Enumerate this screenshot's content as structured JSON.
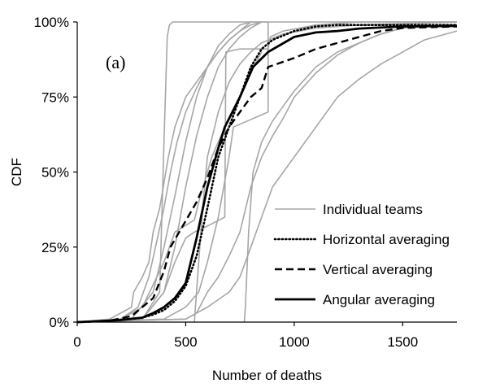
{
  "chart_data": {
    "type": "line",
    "title": "",
    "panel_label": "(a)",
    "xlabel": "Number of deaths",
    "ylabel": "CDF",
    "xlim": [
      0,
      1750
    ],
    "ylim": [
      0,
      100
    ],
    "x_ticks": [
      0,
      500,
      1000,
      1500
    ],
    "y_ticks": [
      0,
      25,
      50,
      75,
      100
    ],
    "x_tick_labels": [
      "0",
      "500",
      "1000",
      "1500"
    ],
    "y_tick_labels": [
      "0%",
      "25%",
      "50%",
      "75%",
      "100%"
    ],
    "grid": false,
    "legend_position": "bottom-right",
    "legend": [
      {
        "label": "Individual teams",
        "style": "solid",
        "color": "#a6a6a6"
      },
      {
        "label": "Horizontal averaging",
        "style": "dotted",
        "color": "#000000"
      },
      {
        "label": "Vertical averaging",
        "style": "dashed",
        "color": "#000000"
      },
      {
        "label": "Angular averaging",
        "style": "solid",
        "color": "#000000"
      }
    ],
    "series": [
      {
        "name": "Individual teams",
        "style": "solid",
        "color": "#a6a6a6",
        "width": 1.6,
        "points": [
          [
            0,
            0
          ],
          [
            300,
            1
          ],
          [
            380,
            10
          ],
          [
            400,
            60
          ],
          [
            415,
            95
          ],
          [
            425,
            99
          ],
          [
            440,
            100
          ],
          [
            880,
            100
          ]
        ]
      },
      {
        "name": "Individual teams",
        "style": "solid",
        "color": "#a6a6a6",
        "width": 1.6,
        "points": [
          [
            0,
            0
          ],
          [
            150,
            1
          ],
          [
            250,
            5
          ],
          [
            260,
            10
          ],
          [
            300,
            15
          ],
          [
            330,
            20
          ],
          [
            350,
            30
          ],
          [
            380,
            38
          ],
          [
            420,
            55
          ],
          [
            450,
            65
          ],
          [
            500,
            75
          ],
          [
            550,
            80
          ],
          [
            600,
            85
          ],
          [
            650,
            90
          ],
          [
            700,
            94
          ],
          [
            750,
            97
          ],
          [
            800,
            100
          ],
          [
            880,
            100
          ]
        ]
      },
      {
        "name": "Individual teams",
        "style": "solid",
        "color": "#a6a6a6",
        "width": 1.6,
        "points": [
          [
            0,
            0
          ],
          [
            200,
            1
          ],
          [
            280,
            5
          ],
          [
            330,
            15
          ],
          [
            370,
            28
          ],
          [
            400,
            38
          ],
          [
            430,
            50
          ],
          [
            460,
            60
          ],
          [
            500,
            70
          ],
          [
            550,
            78
          ],
          [
            600,
            85
          ],
          [
            650,
            90
          ],
          [
            700,
            94
          ],
          [
            750,
            97
          ],
          [
            800,
            99
          ],
          [
            850,
            100
          ]
        ]
      },
      {
        "name": "Individual teams",
        "style": "solid",
        "color": "#a6a6a6",
        "width": 1.6,
        "points": [
          [
            0,
            0
          ],
          [
            250,
            1
          ],
          [
            350,
            10
          ],
          [
            400,
            25
          ],
          [
            450,
            42
          ],
          [
            500,
            60
          ],
          [
            550,
            75
          ],
          [
            600,
            85
          ],
          [
            650,
            92
          ],
          [
            700,
            96
          ],
          [
            750,
            99
          ],
          [
            800,
            100
          ]
        ]
      },
      {
        "name": "Individual teams",
        "style": "solid",
        "color": "#a6a6a6",
        "width": 1.6,
        "points": [
          [
            0,
            0
          ],
          [
            300,
            1
          ],
          [
            400,
            10
          ],
          [
            450,
            25
          ],
          [
            500,
            45
          ],
          [
            550,
            62
          ],
          [
            600,
            75
          ],
          [
            650,
            85
          ],
          [
            700,
            91
          ],
          [
            750,
            95
          ],
          [
            800,
            98
          ],
          [
            850,
            100
          ]
        ]
      },
      {
        "name": "Individual teams",
        "style": "solid",
        "color": "#a6a6a6",
        "width": 1.6,
        "points": [
          [
            0,
            0
          ],
          [
            200,
            1
          ],
          [
            300,
            5
          ],
          [
            400,
            20
          ],
          [
            450,
            30
          ],
          [
            540,
            34
          ],
          [
            560,
            40
          ],
          [
            620,
            55
          ],
          [
            680,
            65
          ],
          [
            730,
            72
          ],
          [
            780,
            80
          ],
          [
            820,
            86
          ],
          [
            850,
            90
          ]
        ]
      },
      {
        "name": "Individual teams",
        "style": "solid",
        "color": "#a6a6a6",
        "width": 1.6,
        "points": [
          [
            0,
            0
          ],
          [
            300,
            1
          ],
          [
            400,
            10
          ],
          [
            450,
            20
          ],
          [
            500,
            28
          ],
          [
            540,
            30
          ],
          [
            600,
            32
          ],
          [
            680,
            35
          ],
          [
            685,
            90
          ],
          [
            750,
            91
          ],
          [
            880,
            91
          ],
          [
            890,
            95
          ],
          [
            950,
            97
          ],
          [
            1100,
            99
          ],
          [
            1300,
            100
          ],
          [
            1750,
            100
          ]
        ]
      },
      {
        "name": "Individual teams",
        "style": "solid",
        "color": "#a6a6a6",
        "width": 1.6,
        "points": [
          [
            540,
            0
          ],
          [
            545,
            5
          ],
          [
            560,
            20
          ],
          [
            580,
            40
          ],
          [
            600,
            55
          ],
          [
            650,
            70
          ],
          [
            700,
            80
          ],
          [
            750,
            86
          ],
          [
            800,
            90
          ],
          [
            850,
            93
          ],
          [
            950,
            96
          ],
          [
            1100,
            98
          ],
          [
            1300,
            99
          ],
          [
            1750,
            100
          ]
        ]
      },
      {
        "name": "Individual teams",
        "style": "solid",
        "color": "#a6a6a6",
        "width": 1.6,
        "points": [
          [
            0,
            0
          ],
          [
            400,
            1
          ],
          [
            500,
            5
          ],
          [
            560,
            10
          ],
          [
            600,
            20
          ],
          [
            650,
            35
          ],
          [
            700,
            55
          ],
          [
            720,
            65
          ],
          [
            880,
            70
          ],
          [
            880,
            100
          ],
          [
            1750,
            100
          ]
        ]
      },
      {
        "name": "Individual teams",
        "style": "solid",
        "color": "#a6a6a6",
        "width": 1.6,
        "points": [
          [
            0,
            0
          ],
          [
            500,
            1
          ],
          [
            550,
            3
          ],
          [
            600,
            10
          ],
          [
            650,
            15
          ],
          [
            700,
            22
          ],
          [
            750,
            30
          ],
          [
            800,
            45
          ],
          [
            850,
            55
          ],
          [
            900,
            62
          ],
          [
            950,
            68
          ],
          [
            1000,
            75
          ],
          [
            1100,
            83
          ],
          [
            1200,
            89
          ],
          [
            1300,
            93
          ],
          [
            1400,
            96
          ],
          [
            1500,
            98
          ],
          [
            1750,
            99
          ]
        ]
      },
      {
        "name": "Individual teams",
        "style": "solid",
        "color": "#a6a6a6",
        "width": 1.6,
        "points": [
          [
            770,
            0
          ],
          [
            775,
            5
          ],
          [
            790,
            30
          ],
          [
            810,
            50
          ],
          [
            850,
            60
          ],
          [
            900,
            67
          ],
          [
            950,
            72
          ],
          [
            1000,
            77
          ],
          [
            1100,
            85
          ],
          [
            1200,
            90
          ],
          [
            1300,
            93
          ],
          [
            1400,
            96
          ],
          [
            1500,
            98
          ],
          [
            1750,
            99
          ]
        ]
      },
      {
        "name": "Individual teams",
        "style": "solid",
        "color": "#a6a6a6",
        "width": 1.6,
        "points": [
          [
            0,
            0
          ],
          [
            500,
            1
          ],
          [
            600,
            5
          ],
          [
            700,
            10
          ],
          [
            750,
            15
          ],
          [
            800,
            25
          ],
          [
            850,
            35
          ],
          [
            900,
            45
          ],
          [
            950,
            50
          ],
          [
            1000,
            55
          ],
          [
            1050,
            60
          ],
          [
            1100,
            65
          ],
          [
            1150,
            70
          ],
          [
            1200,
            75
          ],
          [
            1300,
            81
          ],
          [
            1400,
            86
          ],
          [
            1500,
            90
          ],
          [
            1600,
            94
          ],
          [
            1750,
            97
          ]
        ]
      },
      {
        "name": "Horizontal averaging",
        "style": "dotted",
        "color": "#000000",
        "width": 2.6,
        "points": [
          [
            0,
            0
          ],
          [
            100,
            0.3
          ],
          [
            200,
            0.7
          ],
          [
            300,
            1.5
          ],
          [
            350,
            2.5
          ],
          [
            400,
            4
          ],
          [
            450,
            7
          ],
          [
            500,
            12
          ],
          [
            550,
            22
          ],
          [
            600,
            38
          ],
          [
            650,
            55
          ],
          [
            700,
            65
          ],
          [
            750,
            75
          ],
          [
            800,
            85
          ],
          [
            850,
            91
          ],
          [
            900,
            94
          ],
          [
            1000,
            97
          ],
          [
            1100,
            98.5
          ],
          [
            1200,
            99
          ],
          [
            1400,
            99
          ],
          [
            1750,
            99
          ]
        ]
      },
      {
        "name": "Vertical averaging",
        "style": "dashed",
        "color": "#000000",
        "width": 2.4,
        "points": [
          [
            0,
            0
          ],
          [
            150,
            0.5
          ],
          [
            250,
            2
          ],
          [
            350,
            8
          ],
          [
            400,
            17
          ],
          [
            430,
            25
          ],
          [
            470,
            30
          ],
          [
            550,
            40
          ],
          [
            600,
            48
          ],
          [
            650,
            58
          ],
          [
            700,
            65
          ],
          [
            750,
            70
          ],
          [
            800,
            75
          ],
          [
            850,
            78
          ],
          [
            880,
            85
          ],
          [
            1000,
            88
          ],
          [
            1100,
            91
          ],
          [
            1200,
            93
          ],
          [
            1300,
            95
          ],
          [
            1400,
            97
          ],
          [
            1500,
            98
          ],
          [
            1750,
            98.5
          ]
        ]
      },
      {
        "name": "Angular averaging",
        "style": "solid",
        "color": "#000000",
        "width": 2.8,
        "points": [
          [
            0,
            0
          ],
          [
            100,
            0.3
          ],
          [
            200,
            0.7
          ],
          [
            300,
            1.5
          ],
          [
            350,
            3
          ],
          [
            400,
            5
          ],
          [
            450,
            8
          ],
          [
            500,
            13
          ],
          [
            550,
            28
          ],
          [
            600,
            45
          ],
          [
            650,
            58
          ],
          [
            680,
            65
          ],
          [
            750,
            75
          ],
          [
            810,
            85
          ],
          [
            880,
            90
          ],
          [
            1000,
            95
          ],
          [
            1100,
            96.5
          ],
          [
            1200,
            97
          ],
          [
            1300,
            97.8
          ],
          [
            1500,
            98.5
          ],
          [
            1750,
            98.7
          ]
        ]
      }
    ]
  }
}
